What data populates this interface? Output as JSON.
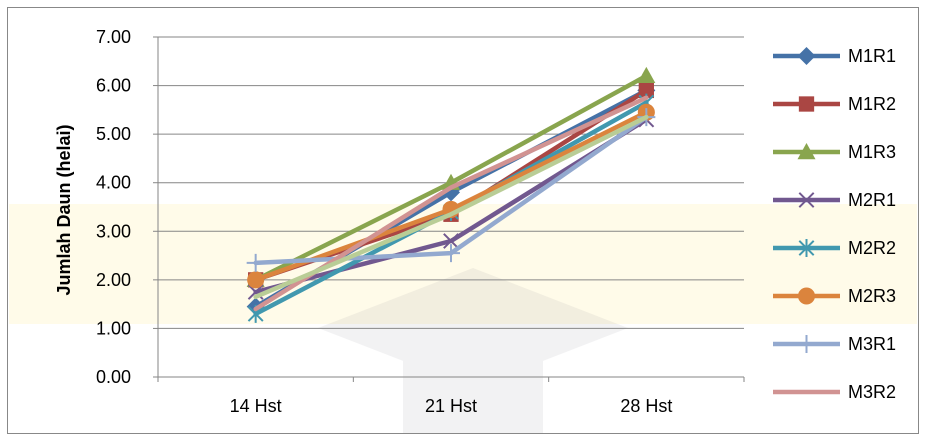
{
  "chart_data": {
    "type": "line",
    "title": "",
    "xlabel": "",
    "ylabel": "Jumlah Daun (helai)",
    "categories": [
      "14 Hst",
      "21 Hst",
      "28 Hst"
    ],
    "ylim": [
      0,
      7
    ],
    "yticks": [
      "0.00",
      "1.00",
      "2.00",
      "3.00",
      "4.00",
      "5.00",
      "6.00",
      "7.00"
    ],
    "grid": true,
    "legend": "right",
    "series": [
      {
        "name": "M1R1",
        "values": [
          1.45,
          3.8,
          5.9
        ],
        "color": "#4572a7",
        "marker": "diamond"
      },
      {
        "name": "M1R2",
        "values": [
          2.0,
          3.35,
          5.9
        ],
        "color": "#aa4643",
        "marker": "square"
      },
      {
        "name": "M1R3",
        "values": [
          2.0,
          4.0,
          6.2
        ],
        "color": "#89a54e",
        "marker": "triangle"
      },
      {
        "name": "M2R1",
        "values": [
          1.75,
          2.8,
          5.3
        ],
        "color": "#71588f",
        "marker": "x"
      },
      {
        "name": "M2R2",
        "values": [
          1.3,
          3.4,
          5.65
        ],
        "color": "#4198af",
        "marker": "asterisk"
      },
      {
        "name": "M2R3",
        "values": [
          2.0,
          3.45,
          5.45
        ],
        "color": "#db843d",
        "marker": "circle"
      },
      {
        "name": "M3R1",
        "values": [
          2.35,
          2.55,
          5.35
        ],
        "color": "#93a9cf",
        "marker": "plus"
      },
      {
        "name": "M3R2",
        "values": [
          1.4,
          3.9,
          5.75
        ],
        "color": "#d19392",
        "marker": "none"
      },
      {
        "name": "",
        "values": [
          1.65,
          3.35,
          5.35
        ],
        "color": "#b9cd96",
        "marker": "none"
      }
    ]
  }
}
